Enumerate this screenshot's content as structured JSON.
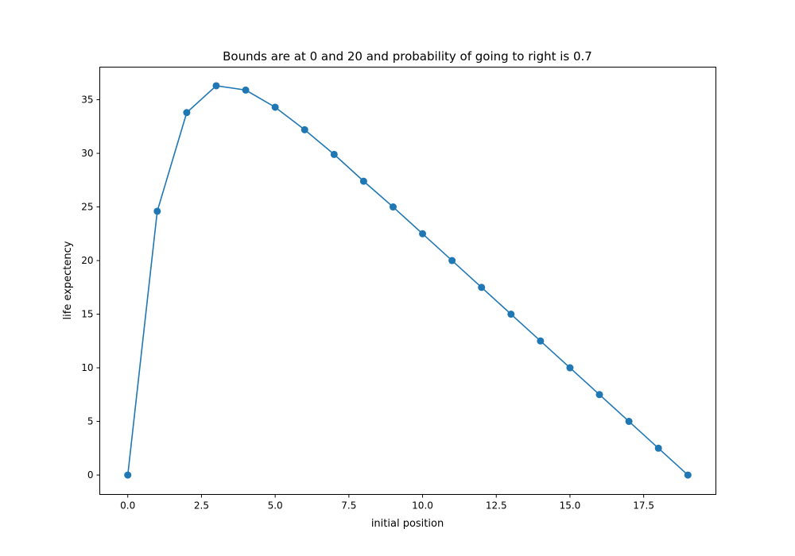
{
  "chart_data": {
    "type": "line",
    "title": "Bounds are at 0 and 20 and probability of going to right is 0.7",
    "xlabel": "initial position",
    "ylabel": "life expectency",
    "xlim": [
      -0.95,
      19.95
    ],
    "ylim": [
      -1.81,
      38.04
    ],
    "xticks": [
      0,
      2.5,
      5,
      7.5,
      10,
      12.5,
      15,
      17.5
    ],
    "xtick_labels": [
      "0.0",
      "2.5",
      "5.0",
      "7.5",
      "10.0",
      "12.5",
      "15.0",
      "17.5"
    ],
    "yticks": [
      0,
      5,
      10,
      15,
      20,
      25,
      30,
      35
    ],
    "ytick_labels": [
      "0",
      "5",
      "10",
      "15",
      "20",
      "25",
      "30",
      "35"
    ],
    "grid": false,
    "legend": false,
    "series": [
      {
        "color": "#1f77b4",
        "marker": "circle",
        "x": [
          0,
          1,
          2,
          3,
          4,
          5,
          6,
          7,
          8,
          9,
          10,
          11,
          12,
          13,
          14,
          15,
          16,
          17,
          18,
          19
        ],
        "y": [
          0,
          24.6,
          33.8,
          36.3,
          35.9,
          34.3,
          32.2,
          29.9,
          27.4,
          25.0,
          22.5,
          20.0,
          17.5,
          15.0,
          12.5,
          10.0,
          7.5,
          5.0,
          2.5,
          0
        ]
      }
    ]
  }
}
